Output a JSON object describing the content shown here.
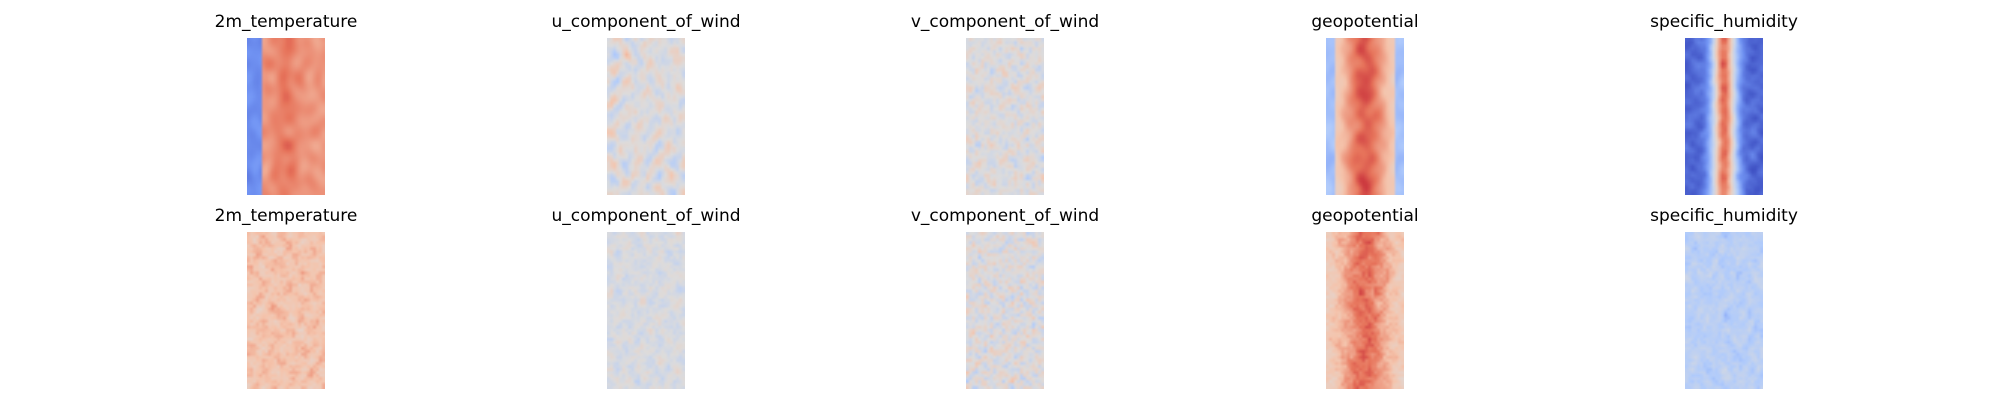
{
  "chart_data": {
    "type": "heatmap",
    "colormap": {
      "name": "coolwarm",
      "stops": [
        "#3b4cc0",
        "#7396f5",
        "#b0cbfc",
        "#dddcdc",
        "#f5c4ac",
        "#e7745b",
        "#b40426"
      ]
    },
    "rows": [
      {
        "panels": [
          {
            "title": "2m_temperature",
            "pattern": "temperature"
          },
          {
            "title": "u_component_of_wind",
            "pattern": "wind_u"
          },
          {
            "title": "v_component_of_wind",
            "pattern": "wind_v"
          },
          {
            "title": "geopotential",
            "pattern": "geopotential"
          },
          {
            "title": "specific_humidity",
            "pattern": "humidity"
          }
        ]
      },
      {
        "panels": [
          {
            "title": "2m_temperature",
            "pattern": "temperature_noise"
          },
          {
            "title": "u_component_of_wind",
            "pattern": "wind_noise"
          },
          {
            "title": "v_component_of_wind",
            "pattern": "wind_noise_strong"
          },
          {
            "title": "geopotential",
            "pattern": "geopotential_noise"
          },
          {
            "title": "specific_humidity",
            "pattern": "humidity_noise"
          }
        ]
      }
    ]
  }
}
